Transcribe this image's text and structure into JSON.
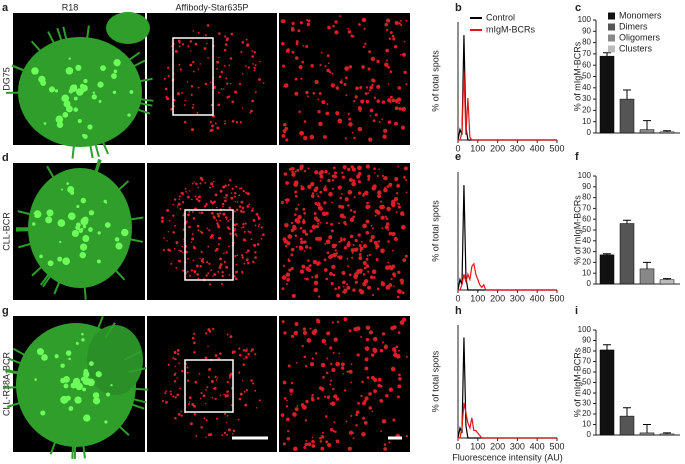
{
  "figure": {
    "column_headers": [
      "R18",
      "Affibody-Star635P"
    ],
    "rows": [
      {
        "panel_letter": "a",
        "label": "DG75"
      },
      {
        "panel_letter": "d",
        "label": "CLL-BCR"
      },
      {
        "panel_letter": "g",
        "label": "CLL-R38A-BCR"
      }
    ]
  },
  "chart_data": [
    {
      "type": "line",
      "panel": "b",
      "y_label": "% of total spots",
      "x": [
        0,
        10,
        20,
        30,
        40,
        50,
        60,
        70,
        80,
        90,
        100,
        110,
        120,
        130,
        140,
        500
      ],
      "xlim": [
        0,
        500
      ],
      "xticks": [
        0,
        100,
        200,
        300,
        400,
        500
      ],
      "ylim": [
        0,
        45
      ],
      "series": [
        {
          "name": "Control",
          "color": "#000000",
          "values": [
            0,
            4,
            2,
            40,
            5,
            0,
            0,
            0,
            0,
            0,
            0,
            0,
            0,
            0,
            0,
            0
          ]
        },
        {
          "name": "mIgM-BCRs",
          "color": "#e8141c",
          "values": [
            0,
            0,
            3,
            26,
            2,
            16,
            1,
            0,
            0,
            0,
            0,
            0,
            0,
            0,
            0,
            0
          ]
        }
      ]
    },
    {
      "type": "bar",
      "panel": "c",
      "y_label": "% of mIgM-BCRs",
      "categories": [
        "Monomers",
        "Dimers",
        "Oligomers",
        "Clusters"
      ],
      "colors": [
        "#111111",
        "#555555",
        "#888888",
        "#bbbbbb"
      ],
      "values": [
        68,
        30,
        3,
        1
      ],
      "errors": [
        3,
        8,
        8,
        1
      ],
      "ylim": [
        0,
        100
      ],
      "yticks": [
        0,
        10,
        20,
        30,
        40,
        50,
        60,
        70,
        80,
        90,
        100
      ]
    },
    {
      "type": "line",
      "panel": "e",
      "y_label": "% of total spots",
      "x": [
        0,
        10,
        20,
        30,
        40,
        50,
        60,
        70,
        80,
        90,
        100,
        110,
        120,
        130,
        140,
        500
      ],
      "xlim": [
        0,
        500
      ],
      "xticks": [
        0,
        100,
        200,
        300,
        400,
        500
      ],
      "ylim": [
        0,
        45
      ],
      "series": [
        {
          "color": "#000000",
          "values": [
            0,
            4,
            2,
            40,
            5,
            0,
            0,
            0,
            0,
            0,
            0,
            0,
            0,
            0,
            0,
            0
          ]
        },
        {
          "color": "#e8141c",
          "values": [
            0,
            0,
            2,
            6,
            3,
            6,
            4,
            9,
            10,
            6,
            4,
            2,
            1,
            2,
            0,
            0
          ]
        }
      ]
    },
    {
      "type": "bar",
      "panel": "f",
      "y_label": "% of mIgM-BCRs",
      "colors": [
        "#111111",
        "#555555",
        "#888888",
        "#bbbbbb"
      ],
      "values": [
        27,
        56,
        14,
        4
      ],
      "errors": [
        1,
        3,
        6,
        1
      ],
      "ylim": [
        0,
        100
      ],
      "yticks": [
        0,
        10,
        20,
        30,
        40,
        50,
        60,
        70,
        80,
        90,
        100
      ]
    },
    {
      "type": "line",
      "panel": "h",
      "y_label": "% of total spots",
      "x_label": "Fluorescence intensity (AU)",
      "x": [
        0,
        10,
        20,
        30,
        40,
        50,
        60,
        70,
        80,
        90,
        100,
        110,
        120,
        130,
        140,
        500
      ],
      "xlim": [
        0,
        500
      ],
      "xticks": [
        0,
        100,
        200,
        300,
        400,
        500
      ],
      "ylim": [
        0,
        45
      ],
      "series": [
        {
          "color": "#000000",
          "values": [
            0,
            4,
            2,
            40,
            5,
            0,
            0,
            0,
            0,
            0,
            0,
            0,
            0,
            0,
            0,
            0
          ]
        },
        {
          "color": "#e8141c",
          "values": [
            0,
            0,
            4,
            14,
            10,
            6,
            4,
            8,
            3,
            3,
            2,
            1,
            0,
            0,
            0,
            0
          ]
        }
      ]
    },
    {
      "type": "bar",
      "panel": "i",
      "y_label": "% of mIgM-BCRs",
      "colors": [
        "#111111",
        "#555555",
        "#888888",
        "#bbbbbb"
      ],
      "values": [
        81,
        18,
        2,
        1
      ],
      "errors": [
        5,
        8,
        8,
        1
      ],
      "ylim": [
        0,
        100
      ],
      "yticks": [
        0,
        10,
        20,
        30,
        40,
        50,
        60,
        70,
        80,
        90,
        100
      ]
    }
  ]
}
